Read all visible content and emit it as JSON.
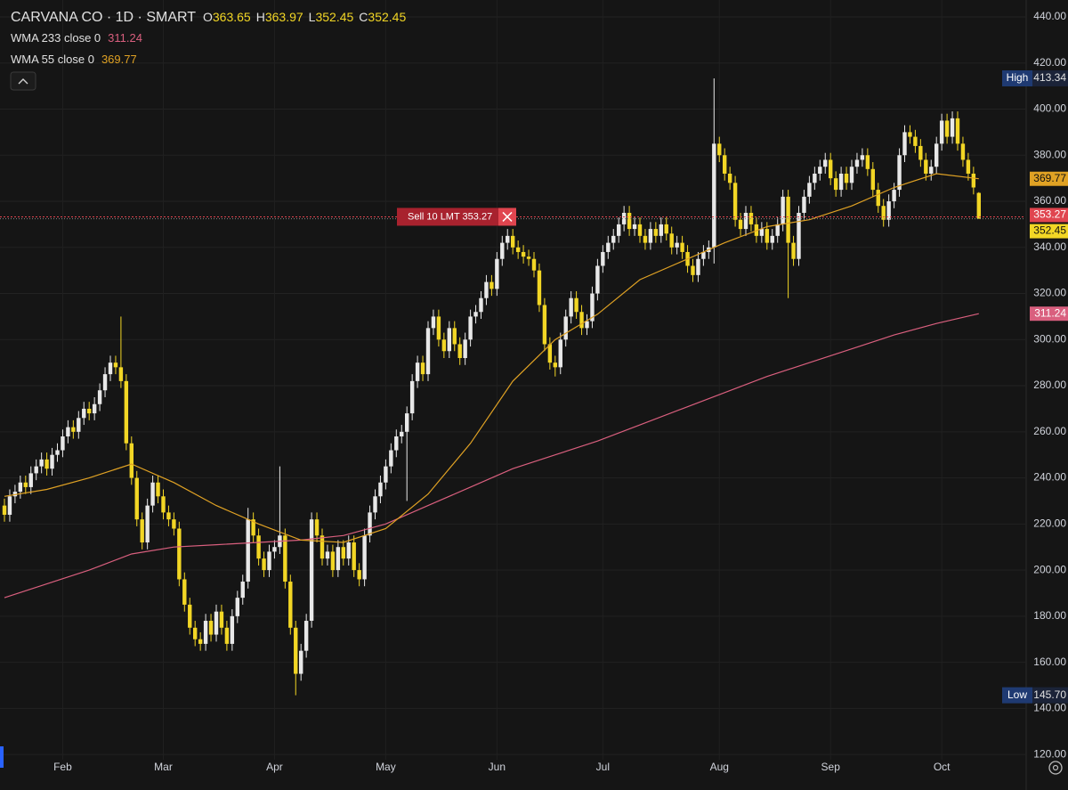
{
  "symbol_title": "CARVANA CO · 1D · SMART",
  "ohlc_letters": [
    "O",
    "H",
    "L",
    "C"
  ],
  "chart_data": {
    "type": "candlestick",
    "categories": [
      null,
      null,
      null,
      null,
      null,
      null,
      null,
      null,
      null,
      null,
      null,
      "Feb",
      null,
      null,
      null,
      null,
      null,
      null,
      null,
      null,
      null,
      null,
      null,
      null,
      null,
      null,
      null,
      null,
      null,
      null,
      "Mar",
      null,
      null,
      null,
      null,
      null,
      null,
      null,
      null,
      null,
      null,
      null,
      null,
      null,
      null,
      null,
      null,
      null,
      null,
      null,
      null,
      "Apr",
      null,
      null,
      null,
      null,
      null,
      null,
      null,
      null,
      null,
      null,
      null,
      null,
      null,
      null,
      null,
      null,
      null,
      null,
      null,
      null,
      "May",
      null,
      null,
      null,
      null,
      null,
      null,
      null,
      null,
      null,
      null,
      null,
      null,
      null,
      null,
      null,
      null,
      null,
      null,
      null,
      null,
      "Jun",
      null,
      null,
      null,
      null,
      null,
      null,
      null,
      null,
      null,
      null,
      null,
      null,
      null,
      null,
      null,
      null,
      null,
      null,
      null,
      "Jul",
      null,
      null,
      null,
      null,
      null,
      null,
      null,
      null,
      null,
      null,
      null,
      null,
      null,
      null,
      null,
      null,
      null,
      null,
      null,
      null,
      null,
      "Aug",
      null,
      null,
      null,
      null,
      null,
      null,
      null,
      null,
      null,
      null,
      null,
      null,
      null,
      null,
      null,
      null,
      null,
      null,
      null,
      null,
      "Sep",
      null,
      null,
      null,
      null,
      null,
      null,
      null,
      null,
      null,
      null,
      null,
      null,
      null,
      null,
      null,
      null,
      null,
      null,
      null,
      null,
      "Oct",
      null,
      null,
      null,
      null,
      null,
      null,
      null
    ],
    "open": [
      228,
      224,
      232,
      234,
      238,
      236,
      242,
      245,
      248,
      244,
      250,
      252,
      258,
      262,
      260,
      266,
      270,
      268,
      272,
      278,
      285,
      290,
      288,
      282,
      255,
      240,
      222,
      212,
      228,
      238,
      232,
      225,
      222,
      218,
      196,
      185,
      175,
      170,
      168,
      178,
      172,
      182,
      175,
      168,
      180,
      188,
      195,
      222,
      215,
      205,
      200,
      208,
      210,
      215,
      195,
      175,
      155,
      165,
      178,
      222,
      215,
      205,
      208,
      200,
      210,
      205,
      212,
      200,
      196,
      215,
      225,
      232,
      238,
      245,
      252,
      258,
      260,
      268,
      282,
      290,
      285,
      305,
      310,
      300,
      295,
      305,
      298,
      292,
      300,
      310,
      312,
      318,
      325,
      322,
      335,
      342,
      345,
      340,
      338,
      336,
      335,
      330,
      315,
      298,
      290,
      288,
      300,
      310,
      318,
      312,
      305,
      308,
      320,
      332,
      338,
      342,
      345,
      350,
      355,
      348,
      350,
      345,
      342,
      348,
      345,
      350,
      346,
      340,
      342,
      338,
      332,
      328,
      335,
      338,
      340,
      385,
      380,
      372,
      368,
      352,
      348,
      355,
      350,
      345,
      348,
      342,
      345,
      350,
      362,
      342,
      335,
      355,
      362,
      368,
      372,
      375,
      378,
      370,
      365,
      372,
      368,
      375,
      378,
      380,
      374,
      365,
      358,
      352,
      360,
      365,
      380,
      390,
      388,
      384,
      378,
      372,
      375,
      385,
      395,
      388,
      396,
      385,
      378,
      372,
      363.65
    ],
    "high": [
      231,
      235,
      237,
      241,
      241,
      245,
      248,
      251,
      251,
      253,
      255,
      261,
      265,
      265,
      269,
      273,
      273,
      275,
      281,
      288,
      293,
      293,
      310,
      285,
      258,
      243,
      225,
      231,
      241,
      241,
      235,
      228,
      225,
      221,
      199,
      188,
      178,
      173,
      181,
      181,
      185,
      185,
      178,
      183,
      191,
      198,
      227,
      225,
      218,
      208,
      211,
      213,
      245,
      218,
      198,
      178,
      168,
      181,
      225,
      225,
      218,
      211,
      211,
      213,
      213,
      215,
      215,
      203,
      218,
      228,
      235,
      241,
      248,
      255,
      261,
      263,
      271,
      285,
      293,
      293,
      308,
      313,
      313,
      303,
      308,
      308,
      301,
      303,
      313,
      315,
      321,
      328,
      328,
      338,
      345,
      348,
      348,
      343,
      341,
      339,
      338,
      333,
      318,
      301,
      293,
      303,
      313,
      321,
      321,
      315,
      311,
      323,
      335,
      341,
      345,
      348,
      353,
      358,
      358,
      353,
      353,
      348,
      351,
      351,
      353,
      353,
      349,
      345,
      345,
      341,
      335,
      338,
      341,
      343,
      413.34,
      388,
      383,
      375,
      371,
      355,
      358,
      358,
      353,
      351,
      351,
      348,
      353,
      365,
      365,
      345,
      358,
      365,
      371,
      375,
      378,
      381,
      381,
      373,
      375,
      375,
      378,
      381,
      383,
      383,
      377,
      368,
      361,
      363,
      368,
      383,
      393,
      393,
      391,
      387,
      381,
      378,
      388,
      398,
      398,
      399,
      399,
      388,
      381,
      375,
      363.97
    ],
    "low": [
      221,
      221,
      229,
      231,
      233,
      233,
      239,
      242,
      241,
      241,
      247,
      249,
      255,
      257,
      257,
      263,
      265,
      265,
      269,
      275,
      282,
      285,
      279,
      252,
      237,
      219,
      209,
      209,
      225,
      229,
      222,
      219,
      215,
      193,
      182,
      172,
      167,
      165,
      165,
      169,
      169,
      172,
      165,
      165,
      177,
      185,
      192,
      212,
      202,
      197,
      197,
      205,
      207,
      192,
      172,
      145.7,
      152,
      162,
      175,
      212,
      202,
      202,
      197,
      197,
      202,
      202,
      197,
      193,
      193,
      212,
      222,
      229,
      235,
      242,
      249,
      255,
      230,
      265,
      279,
      282,
      282,
      302,
      297,
      292,
      292,
      295,
      289,
      289,
      297,
      307,
      309,
      315,
      319,
      319,
      332,
      339,
      337,
      335,
      333,
      332,
      327,
      312,
      295,
      287,
      284,
      285,
      297,
      307,
      309,
      302,
      302,
      305,
      317,
      329,
      335,
      339,
      342,
      347,
      345,
      345,
      342,
      339,
      339,
      342,
      342,
      343,
      337,
      337,
      335,
      329,
      325,
      325,
      332,
      335,
      333,
      377,
      369,
      365,
      349,
      345,
      345,
      347,
      342,
      342,
      339,
      339,
      342,
      347,
      318,
      332,
      332,
      352,
      359,
      365,
      369,
      372,
      367,
      362,
      362,
      365,
      365,
      372,
      375,
      371,
      362,
      355,
      349,
      349,
      357,
      362,
      377,
      385,
      381,
      375,
      369,
      369,
      372,
      382,
      385,
      385,
      382,
      375,
      369,
      363,
      352.45
    ],
    "close": [
      224,
      232,
      234,
      238,
      236,
      242,
      245,
      248,
      244,
      250,
      252,
      258,
      262,
      260,
      266,
      270,
      268,
      272,
      278,
      285,
      290,
      288,
      282,
      255,
      240,
      222,
      212,
      228,
      238,
      232,
      225,
      222,
      218,
      196,
      185,
      175,
      170,
      168,
      178,
      172,
      182,
      175,
      168,
      180,
      188,
      195,
      222,
      215,
      205,
      200,
      208,
      210,
      215,
      195,
      175,
      155,
      165,
      178,
      222,
      215,
      205,
      208,
      200,
      210,
      205,
      212,
      200,
      196,
      215,
      225,
      232,
      238,
      245,
      252,
      258,
      260,
      268,
      282,
      290,
      285,
      305,
      310,
      300,
      295,
      305,
      298,
      292,
      300,
      310,
      312,
      318,
      325,
      322,
      335,
      342,
      345,
      340,
      338,
      336,
      335,
      330,
      315,
      298,
      290,
      288,
      300,
      310,
      318,
      312,
      305,
      308,
      320,
      332,
      338,
      342,
      345,
      350,
      355,
      348,
      350,
      345,
      342,
      348,
      345,
      350,
      346,
      340,
      342,
      338,
      332,
      328,
      335,
      338,
      340,
      385,
      380,
      372,
      368,
      352,
      348,
      355,
      350,
      345,
      348,
      342,
      345,
      350,
      362,
      342,
      335,
      355,
      362,
      368,
      372,
      375,
      378,
      370,
      365,
      372,
      368,
      375,
      378,
      380,
      374,
      365,
      358,
      352,
      360,
      365,
      380,
      390,
      388,
      384,
      378,
      372,
      375,
      385,
      395,
      388,
      396,
      385,
      378,
      372,
      366,
      352.45
    ],
    "up_color": "#e8e8e8",
    "down_color": "#f2d625",
    "series": [
      {
        "name": "WMA 233 close 0",
        "color": "#d95f7e",
        "x": [
          0,
          8,
          16,
          24,
          32,
          40,
          48,
          56,
          64,
          72,
          80,
          88,
          96,
          104,
          112,
          120,
          128,
          136,
          144,
          152,
          160,
          168,
          176,
          184
        ],
        "values": [
          188,
          194,
          200,
          207,
          210,
          211,
          212,
          213,
          215,
          220,
          228,
          236,
          244,
          250,
          256,
          263,
          270,
          277,
          284,
          290,
          296,
          302,
          307,
          311.24
        ]
      },
      {
        "name": "WMA 55 close 0",
        "color": "#e0a224",
        "x": [
          0,
          8,
          16,
          24,
          32,
          40,
          48,
          56,
          64,
          72,
          80,
          88,
          96,
          104,
          112,
          120,
          128,
          136,
          144,
          152,
          160,
          168,
          176,
          184
        ],
        "values": [
          232,
          235,
          240,
          246,
          238,
          228,
          220,
          213,
          212,
          218,
          233,
          255,
          282,
          300,
          311,
          326,
          334,
          342,
          349,
          352,
          358,
          366,
          372,
          369.77
        ]
      }
    ],
    "ylim": [
      110,
      440
    ],
    "yticks": [
      {
        "value": 120,
        "label": "120.00"
      },
      {
        "value": 140,
        "label": "140.00"
      },
      {
        "value": 160,
        "label": "160.00"
      },
      {
        "value": 180,
        "label": "180.00"
      },
      {
        "value": 200,
        "label": "200.00"
      },
      {
        "value": 220,
        "label": "220.00"
      },
      {
        "value": 240,
        "label": "240.00"
      },
      {
        "value": 260,
        "label": "260.00"
      },
      {
        "value": 280,
        "label": "280.00"
      },
      {
        "value": 300,
        "label": "300.00"
      },
      {
        "value": 320,
        "label": "320.00"
      },
      {
        "value": 340,
        "label": "340.00"
      },
      {
        "value": 360,
        "label": "360.00"
      },
      {
        "value": 380,
        "label": "380.00"
      },
      {
        "value": 400,
        "label": "400.00"
      },
      {
        "value": 420,
        "label": "420.00"
      },
      {
        "value": 440,
        "label": "440.00"
      }
    ],
    "grid": true,
    "extreme_labels": [
      {
        "name": "High",
        "label": "413.34"
      },
      {
        "name": "Low",
        "label": "145.70"
      }
    ],
    "order": {
      "label": "Sell 10 LMT 353.27",
      "price": 353.27
    }
  }
}
